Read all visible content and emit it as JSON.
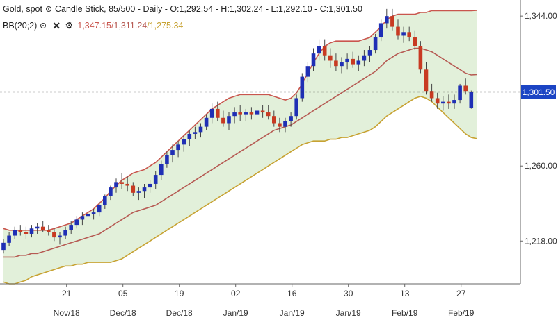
{
  "header": {
    "symbol": "Gold, spot",
    "chart_info": "Candle Stick, 85/500 - Daily - O:1,292.54 - H:1,302.24 - L:1,292.10 - C:1,301.50",
    "indicator": "BB(20;2)",
    "bb_upper": "1,347.15",
    "bb_mid": "1,311.24",
    "bb_lower": "1,275.34",
    "sep": "/"
  },
  "colors": {
    "up": "#1f2fb5",
    "down": "#c83a22",
    "band_fill": "#e2f0da",
    "upper_line": "#c9564e",
    "mid_line": "#b65a53",
    "lower_line": "#c7a232",
    "price_tag": "#1b44c4"
  },
  "icons": [
    "eye-icon",
    "close-icon",
    "gear-icon"
  ],
  "chart_data": {
    "type": "candlestick",
    "price_label": "1,301.50",
    "y_ticks": [
      1218,
      1260,
      1344
    ],
    "y_tick_labels": [
      "1,218.00",
      "1,260.00",
      "1,344.00"
    ],
    "ylim": [
      1194,
      1353
    ],
    "x_ticks": [
      {
        "day": "21",
        "month": "Nov/18",
        "i": 7
      },
      {
        "day": "05",
        "month": "Dec/18",
        "i": 17
      },
      {
        "day": "19",
        "month": "Dec/18",
        "i": 27
      },
      {
        "day": "02",
        "month": "Jan/19",
        "i": 37
      },
      {
        "day": "16",
        "month": "Jan/19",
        "i": 47
      },
      {
        "day": "30",
        "month": "Jan/19",
        "i": 57
      },
      {
        "day": "13",
        "month": "Feb/19",
        "i": 67
      },
      {
        "day": "27",
        "month": "Feb/19",
        "i": 77
      }
    ],
    "candles": [
      [
        1213,
        1219,
        1211,
        1217
      ],
      [
        1217,
        1223,
        1215,
        1221
      ],
      [
        1221,
        1226,
        1219,
        1224
      ],
      [
        1224,
        1227,
        1221,
        1223
      ],
      [
        1223,
        1226,
        1219,
        1222
      ],
      [
        1222,
        1227,
        1220,
        1225
      ],
      [
        1225,
        1228,
        1222,
        1226
      ],
      [
        1226,
        1229,
        1223,
        1224
      ],
      [
        1224,
        1227,
        1221,
        1223
      ],
      [
        1223,
        1225,
        1218,
        1220
      ],
      [
        1220,
        1223,
        1216,
        1221
      ],
      [
        1221,
        1226,
        1219,
        1224
      ],
      [
        1224,
        1229,
        1222,
        1227
      ],
      [
        1227,
        1232,
        1225,
        1230
      ],
      [
        1230,
        1234,
        1227,
        1232
      ],
      [
        1232,
        1235,
        1229,
        1233
      ],
      [
        1233,
        1236,
        1230,
        1234
      ],
      [
        1234,
        1240,
        1232,
        1238
      ],
      [
        1238,
        1244,
        1236,
        1243
      ],
      [
        1243,
        1249,
        1241,
        1248
      ],
      [
        1248,
        1253,
        1245,
        1251
      ],
      [
        1251,
        1256,
        1247,
        1250
      ],
      [
        1250,
        1254,
        1246,
        1249
      ],
      [
        1249,
        1251,
        1243,
        1245
      ],
      [
        1245,
        1248,
        1241,
        1246
      ],
      [
        1246,
        1250,
        1242,
        1248
      ],
      [
        1248,
        1252,
        1245,
        1250
      ],
      [
        1250,
        1257,
        1247,
        1255
      ],
      [
        1255,
        1263,
        1252,
        1261
      ],
      [
        1261,
        1268,
        1259,
        1266
      ],
      [
        1266,
        1272,
        1262,
        1269
      ],
      [
        1269,
        1274,
        1265,
        1272
      ],
      [
        1272,
        1277,
        1268,
        1275
      ],
      [
        1275,
        1280,
        1271,
        1278
      ],
      [
        1278,
        1282,
        1275,
        1279
      ],
      [
        1279,
        1284,
        1276,
        1282
      ],
      [
        1282,
        1289,
        1280,
        1287
      ],
      [
        1287,
        1295,
        1284,
        1292
      ],
      [
        1292,
        1296,
        1285,
        1287
      ],
      [
        1287,
        1291,
        1282,
        1284
      ],
      [
        1284,
        1290,
        1280,
        1288
      ],
      [
        1288,
        1293,
        1284,
        1290
      ],
      [
        1290,
        1294,
        1285,
        1289
      ],
      [
        1289,
        1292,
        1285,
        1290
      ],
      [
        1290,
        1293,
        1286,
        1289
      ],
      [
        1289,
        1293,
        1286,
        1291
      ],
      [
        1291,
        1294,
        1287,
        1290
      ],
      [
        1290,
        1294,
        1286,
        1288
      ],
      [
        1288,
        1291,
        1282,
        1284
      ],
      [
        1284,
        1287,
        1279,
        1282
      ],
      [
        1282,
        1287,
        1279,
        1285
      ],
      [
        1285,
        1290,
        1282,
        1288
      ],
      [
        1288,
        1300,
        1286,
        1298
      ],
      [
        1298,
        1312,
        1296,
        1310
      ],
      [
        1310,
        1318,
        1307,
        1316
      ],
      [
        1316,
        1326,
        1313,
        1323
      ],
      [
        1323,
        1331,
        1319,
        1327
      ],
      [
        1327,
        1331,
        1319,
        1322
      ],
      [
        1322,
        1326,
        1315,
        1319
      ],
      [
        1319,
        1323,
        1313,
        1316
      ],
      [
        1316,
        1321,
        1312,
        1318
      ],
      [
        1318,
        1323,
        1314,
        1320
      ],
      [
        1320,
        1324,
        1315,
        1317
      ],
      [
        1317,
        1322,
        1313,
        1319
      ],
      [
        1319,
        1325,
        1316,
        1322
      ],
      [
        1322,
        1327,
        1318,
        1325
      ],
      [
        1325,
        1334,
        1323,
        1332
      ],
      [
        1332,
        1342,
        1330,
        1340
      ],
      [
        1340,
        1348,
        1337,
        1344
      ],
      [
        1344,
        1348,
        1336,
        1338
      ],
      [
        1338,
        1342,
        1331,
        1333
      ],
      [
        1333,
        1338,
        1329,
        1335
      ],
      [
        1335,
        1338,
        1330,
        1332
      ],
      [
        1332,
        1336,
        1325,
        1327
      ],
      [
        1327,
        1330,
        1312,
        1314
      ],
      [
        1314,
        1318,
        1300,
        1302
      ],
      [
        1302,
        1306,
        1296,
        1298
      ],
      [
        1298,
        1301,
        1292,
        1295
      ],
      [
        1295,
        1299,
        1291,
        1296
      ],
      [
        1296,
        1300,
        1292,
        1295
      ],
      [
        1295,
        1300,
        1292,
        1297
      ],
      [
        1297,
        1306,
        1295,
        1305
      ],
      [
        1305,
        1309,
        1300,
        1302
      ],
      [
        1292.54,
        1302.24,
        1292.1,
        1301.5
      ]
    ],
    "bb_upper": [
      1225,
      1224,
      1224,
      1224,
      1224,
      1224,
      1224,
      1224,
      1224,
      1225,
      1226,
      1227,
      1228,
      1230,
      1232,
      1234,
      1236,
      1239,
      1242,
      1246,
      1249,
      1252,
      1254,
      1256,
      1257,
      1258,
      1260,
      1262,
      1265,
      1268,
      1271,
      1274,
      1277,
      1280,
      1283,
      1286,
      1289,
      1292,
      1294,
      1296,
      1298,
      1299,
      1300,
      1300,
      1300,
      1300,
      1300,
      1300,
      1299,
      1298,
      1297,
      1298,
      1301,
      1306,
      1312,
      1318,
      1323,
      1327,
      1329,
      1330,
      1330,
      1330,
      1330,
      1330,
      1331,
      1332,
      1335,
      1338,
      1342,
      1344,
      1345,
      1345,
      1345,
      1345,
      1346,
      1346,
      1347,
      1347,
      1347,
      1347,
      1347,
      1347,
      1347,
      1347,
      1347.15
    ],
    "bb_mid": [
      1209,
      1209,
      1209,
      1210,
      1210,
      1211,
      1211,
      1212,
      1213,
      1214,
      1215,
      1216,
      1217,
      1218,
      1219,
      1220,
      1221,
      1222,
      1224,
      1226,
      1228,
      1230,
      1232,
      1234,
      1235,
      1236,
      1237,
      1238,
      1240,
      1242,
      1244,
      1246,
      1248,
      1250,
      1252,
      1254,
      1256,
      1258,
      1260,
      1262,
      1264,
      1266,
      1268,
      1270,
      1272,
      1274,
      1276,
      1278,
      1280,
      1281,
      1282,
      1283,
      1285,
      1287,
      1289,
      1291,
      1293,
      1295,
      1297,
      1299,
      1301,
      1303,
      1305,
      1307,
      1309,
      1311,
      1313,
      1316,
      1319,
      1321,
      1323,
      1324,
      1325,
      1326,
      1326,
      1325,
      1324,
      1322,
      1320,
      1318,
      1316,
      1314,
      1312,
      1311,
      1311.24
    ],
    "bb_lower": [
      1195,
      1194,
      1194,
      1195,
      1196,
      1198,
      1199,
      1200,
      1201,
      1202,
      1203,
      1204,
      1204,
      1205,
      1205,
      1206,
      1206,
      1206,
      1206,
      1206,
      1207,
      1208,
      1210,
      1212,
      1214,
      1216,
      1218,
      1220,
      1222,
      1224,
      1226,
      1228,
      1230,
      1232,
      1234,
      1236,
      1238,
      1240,
      1242,
      1244,
      1246,
      1248,
      1250,
      1252,
      1254,
      1256,
      1258,
      1260,
      1262,
      1264,
      1266,
      1268,
      1270,
      1272,
      1273,
      1274,
      1274,
      1274,
      1275,
      1275,
      1276,
      1276,
      1277,
      1278,
      1279,
      1280,
      1282,
      1285,
      1288,
      1290,
      1292,
      1294,
      1296,
      1298,
      1299,
      1298,
      1296,
      1293,
      1290,
      1287,
      1284,
      1281,
      1278,
      1276,
      1275.34
    ]
  }
}
